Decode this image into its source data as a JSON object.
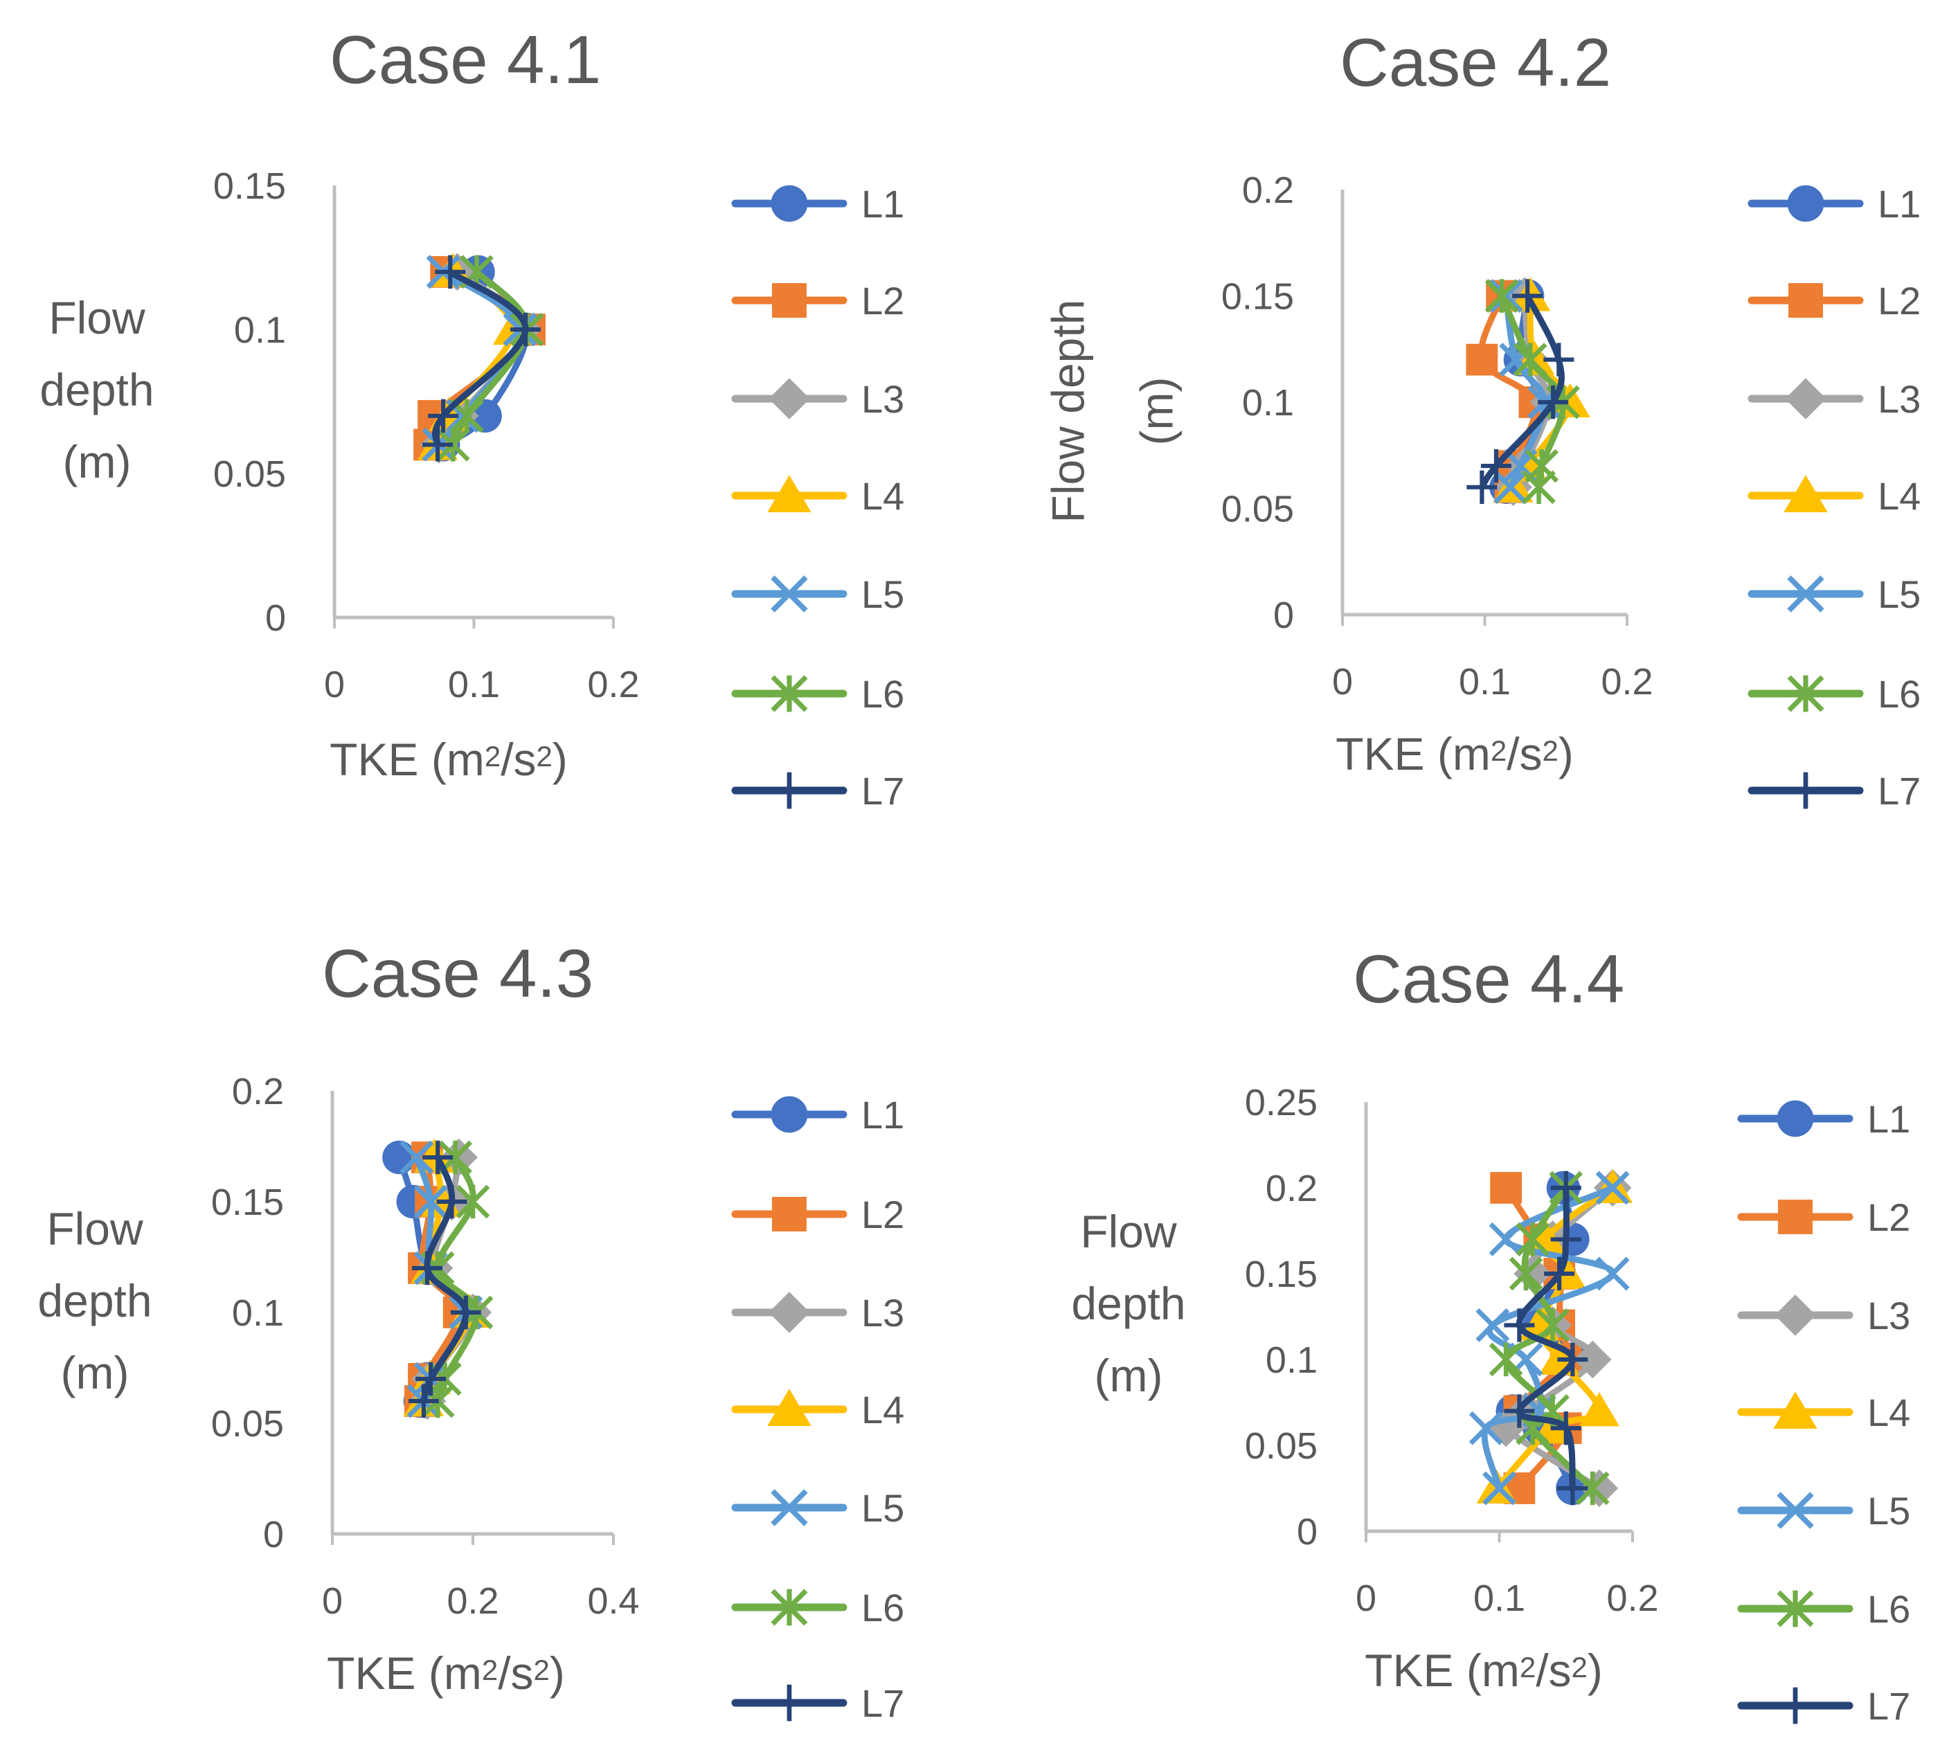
{
  "legend_colors": {
    "L1": "#4472C4",
    "L2": "#ED7D31",
    "L3": "#A5A5A5",
    "L4": "#FFC000",
    "L5": "#5B9BD5",
    "L6": "#70AD47",
    "L7": "#264478"
  },
  "legend_markers": {
    "L1": "circle",
    "L2": "square",
    "L3": "diamond",
    "L4": "triangle",
    "L5": "x",
    "L6": "asterisk",
    "L7": "plus"
  },
  "chart_data": [
    {
      "type": "line",
      "title": "Case 4.1",
      "xlabel": "TKE (m²/s²)",
      "ylabel": "Flow depth (m)",
      "ylabel_lines": [
        "Flow",
        "depth",
        "(m)"
      ],
      "xlim": [
        0,
        0.2
      ],
      "ylim": [
        0,
        0.15
      ],
      "xticks": [
        "0",
        "0.1",
        "0.2"
      ],
      "yticks": [
        "0",
        "0.05",
        "0.1",
        "0.15"
      ],
      "grid": false,
      "legend": "right",
      "y": [
        0.06,
        0.07,
        0.1,
        0.12
      ],
      "series": [
        {
          "name": "L1",
          "x": [
            0.078,
            0.108,
            0.138,
            0.103
          ]
        },
        {
          "name": "L2",
          "x": [
            0.068,
            0.071,
            0.14,
            0.08
          ]
        },
        {
          "name": "L3",
          "x": [
            0.075,
            0.09,
            0.135,
            0.088
          ]
        },
        {
          "name": "L4",
          "x": [
            0.074,
            0.082,
            0.128,
            0.085
          ]
        },
        {
          "name": "L5",
          "x": [
            0.075,
            0.092,
            0.133,
            0.078
          ]
        },
        {
          "name": "L6",
          "x": [
            0.085,
            0.095,
            0.138,
            0.102
          ]
        },
        {
          "name": "L7",
          "x": [
            0.074,
            0.078,
            0.137,
            0.083
          ]
        }
      ]
    },
    {
      "type": "line",
      "title": "Case 4.2",
      "xlabel": "TKE (m²/s²)",
      "ylabel": "Flow depth (m)",
      "ylabel_lines": [
        "Flow depth",
        "(m)"
      ],
      "xlim": [
        0,
        0.2
      ],
      "ylim": [
        0,
        0.2
      ],
      "xticks": [
        "0",
        "0.1",
        "0.2"
      ],
      "yticks": [
        "0",
        "0.05",
        "0.1",
        "0.15",
        "0.2"
      ],
      "grid": false,
      "legend": "right",
      "y": [
        0.06,
        0.07,
        0.1,
        0.12,
        0.15
      ],
      "series": [
        {
          "name": "L1",
          "x": [
            0.115,
            0.125,
            0.14,
            0.125,
            0.13
          ]
        },
        {
          "name": "L2",
          "x": [
            0.118,
            0.12,
            0.135,
            0.098,
            0.112
          ]
        },
        {
          "name": "L3",
          "x": [
            0.12,
            0.128,
            0.145,
            0.132,
            0.128
          ]
        },
        {
          "name": "L4",
          "x": [
            0.12,
            0.13,
            0.16,
            0.135,
            0.132
          ]
        },
        {
          "name": "L5",
          "x": [
            0.118,
            0.125,
            0.142,
            0.122,
            0.115
          ]
        },
        {
          "name": "L6",
          "x": [
            0.138,
            0.14,
            0.155,
            0.132,
            0.112
          ]
        },
        {
          "name": "L7",
          "x": [
            0.098,
            0.108,
            0.148,
            0.152,
            0.13
          ]
        }
      ]
    },
    {
      "type": "line",
      "title": "Case 4.3",
      "xlabel": "TKE (m²/s²)",
      "ylabel": "Flow depth (m)",
      "ylabel_lines": [
        "Flow",
        "depth",
        "(m)"
      ],
      "xlim": [
        0,
        0.4
      ],
      "ylim": [
        0,
        0.2
      ],
      "xticks": [
        "0",
        "0.2",
        "0.4"
      ],
      "yticks": [
        "0",
        "0.05",
        "0.1",
        "0.15",
        "0.2"
      ],
      "grid": false,
      "legend": "right",
      "y": [
        0.06,
        0.07,
        0.1,
        0.12,
        0.15,
        0.17
      ],
      "series": [
        {
          "name": "L1",
          "x": [
            0.125,
            0.135,
            0.19,
            0.135,
            0.115,
            0.095
          ]
        },
        {
          "name": "L2",
          "x": [
            0.125,
            0.13,
            0.18,
            0.13,
            0.14,
            0.135
          ]
        },
        {
          "name": "L3",
          "x": [
            0.135,
            0.14,
            0.2,
            0.145,
            0.17,
            0.18
          ]
        },
        {
          "name": "L4",
          "x": [
            0.13,
            0.14,
            0.195,
            0.14,
            0.155,
            0.145
          ]
        },
        {
          "name": "L5",
          "x": [
            0.13,
            0.14,
            0.19,
            0.14,
            0.14,
            0.12
          ]
        },
        {
          "name": "L6",
          "x": [
            0.15,
            0.16,
            0.205,
            0.15,
            0.2,
            0.175
          ]
        },
        {
          "name": "L7",
          "x": [
            0.13,
            0.14,
            0.19,
            0.135,
            0.17,
            0.15
          ]
        }
      ]
    },
    {
      "type": "line",
      "title": "Case 4.4",
      "xlabel": "TKE (m²/s²)",
      "ylabel": "Flow depth (m)",
      "ylabel_lines": [
        "Flow",
        "depth",
        "(m)"
      ],
      "xlim": [
        0,
        0.2
      ],
      "ylim": [
        0,
        0.25
      ],
      "xticks": [
        "0",
        "0.1",
        "0.2"
      ],
      "yticks": [
        "0",
        "0.05",
        "0.1",
        "0.15",
        "0.2",
        "0.25"
      ],
      "grid": false,
      "legend": "right",
      "y": [
        0.025,
        0.06,
        0.07,
        0.1,
        0.12,
        0.15,
        0.17,
        0.2
      ],
      "series": [
        {
          "name": "L1",
          "x": [
            0.155,
            0.13,
            0.11,
            0.155,
            0.13,
            0.145,
            0.155,
            0.148
          ]
        },
        {
          "name": "L2",
          "x": [
            0.115,
            0.15,
            0.115,
            0.15,
            0.145,
            0.145,
            0.13,
            0.105
          ]
        },
        {
          "name": "L3",
          "x": [
            0.175,
            0.105,
            0.12,
            0.17,
            0.14,
            0.125,
            0.14,
            0.185
          ]
        },
        {
          "name": "L4",
          "x": [
            0.098,
            0.14,
            0.175,
            0.145,
            0.13,
            0.15,
            0.135,
            0.185
          ]
        },
        {
          "name": "L5",
          "x": [
            0.1,
            0.09,
            0.13,
            0.12,
            0.095,
            0.185,
            0.105,
            0.185
          ]
        },
        {
          "name": "L6",
          "x": [
            0.17,
            0.125,
            0.14,
            0.105,
            0.14,
            0.12,
            0.125,
            0.15
          ]
        },
        {
          "name": "L7",
          "x": [
            0.155,
            0.15,
            0.115,
            0.155,
            0.115,
            0.145,
            0.15,
            0.15
          ]
        }
      ]
    }
  ]
}
